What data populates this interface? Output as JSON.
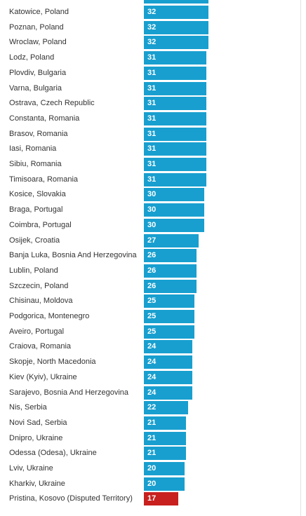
{
  "colors": {
    "bar": "#189fcf",
    "highlight": "#c8201e"
  },
  "chart_data": {
    "type": "bar",
    "orientation": "horizontal",
    "xlim": [
      0,
      32
    ],
    "highlight_category": "Pristina, Kosovo (Disputed Territory)",
    "categories": [
      "Katowice, Poland",
      "Poznan, Poland",
      "Wroclaw, Poland",
      "Lodz, Poland",
      "Plovdiv, Bulgaria",
      "Varna, Bulgaria",
      "Ostrava, Czech Republic",
      "Constanta, Romania",
      "Brasov, Romania",
      "Iasi, Romania",
      "Sibiu, Romania",
      "Timisoara, Romania",
      "Kosice, Slovakia",
      "Braga, Portugal",
      "Coimbra, Portugal",
      "Osijek, Croatia",
      "Banja Luka, Bosnia And Herzegovina",
      "Lublin, Poland",
      "Szczecin, Poland",
      "Chisinau, Moldova",
      "Podgorica, Montenegro",
      "Aveiro, Portugal",
      "Craiova, Romania",
      "Skopje, North Macedonia",
      "Kiev (Kyiv), Ukraine",
      "Sarajevo, Bosnia And Herzegovina",
      "Nis, Serbia",
      "Novi Sad, Serbia",
      "Dnipro, Ukraine",
      "Odessa (Odesa), Ukraine",
      "Lviv, Ukraine",
      "Kharkiv, Ukraine",
      "Pristina, Kosovo (Disputed Territory)"
    ],
    "values": [
      32,
      32,
      32,
      31,
      31,
      31,
      31,
      31,
      31,
      31,
      31,
      31,
      30,
      30,
      30,
      27,
      26,
      26,
      26,
      25,
      25,
      25,
      24,
      24,
      24,
      24,
      22,
      21,
      21,
      21,
      20,
      20,
      17
    ]
  }
}
